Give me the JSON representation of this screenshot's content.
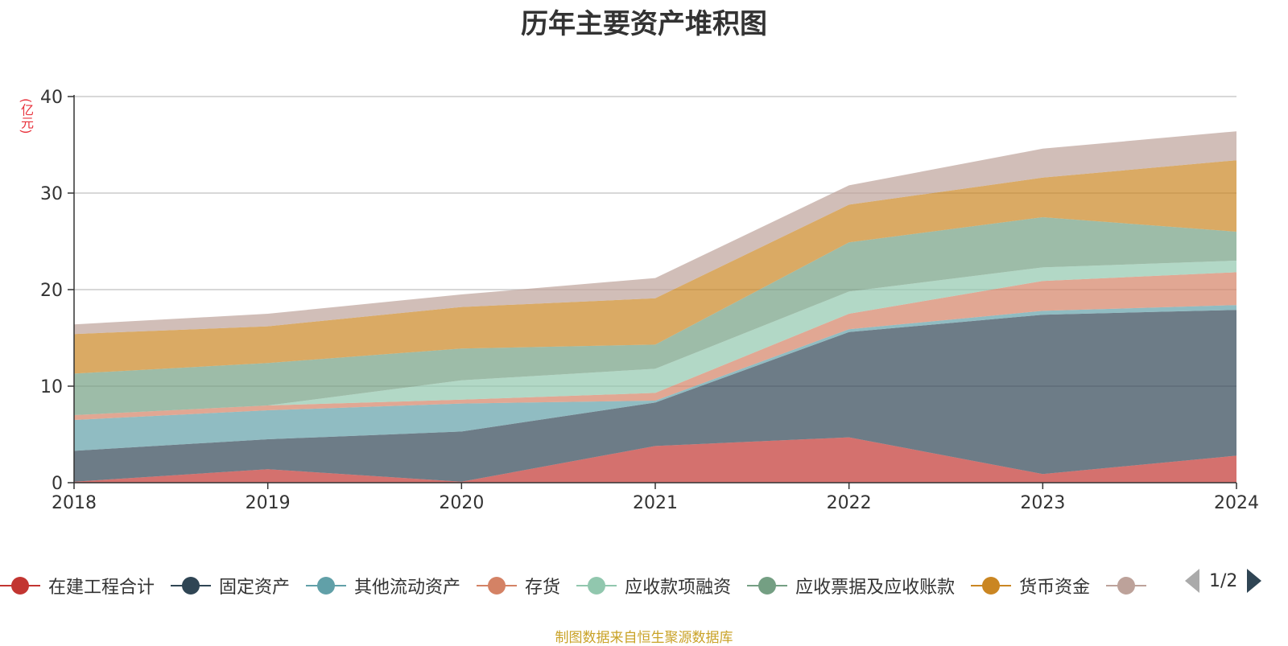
{
  "chart_data": {
    "type": "area",
    "stacked": true,
    "title": "历年主要资产堆积图",
    "unit_label": "(亿元)",
    "x": [
      "2018",
      "2019",
      "2020",
      "2021",
      "2022",
      "2023",
      "2024"
    ],
    "ylim": [
      0,
      40
    ],
    "yticks": [
      0,
      10,
      20,
      30,
      40
    ],
    "grid": true,
    "legend_position": "bottom",
    "legend_page": "1/2",
    "series": [
      {
        "name": "在建工程合计",
        "color": "#c23531",
        "values": [
          0.1,
          1.4,
          0.1,
          3.8,
          4.7,
          0.9,
          2.8
        ]
      },
      {
        "name": "固定资产",
        "color": "#2f4554",
        "values": [
          3.2,
          3.1,
          5.2,
          4.5,
          10.9,
          16.5,
          15.1
        ]
      },
      {
        "name": "其他流动资产",
        "color": "#61a0a8",
        "values": [
          3.2,
          3.0,
          2.9,
          0.2,
          0.3,
          0.4,
          0.5
        ]
      },
      {
        "name": "存货",
        "color": "#d48265",
        "values": [
          0.5,
          0.5,
          0.4,
          0.8,
          1.6,
          3.1,
          3.4
        ]
      },
      {
        "name": "应收款项融资",
        "color": "#91c7ae",
        "values": [
          0.0,
          0.0,
          2.0,
          2.5,
          2.3,
          1.4,
          1.2
        ]
      },
      {
        "name": "应收票据及应收账款",
        "color": "#749f83",
        "values": [
          4.3,
          4.4,
          3.3,
          2.5,
          5.1,
          5.2,
          3.0
        ]
      },
      {
        "name": "货币资金",
        "color": "#ca8622",
        "values": [
          4.1,
          3.8,
          4.3,
          4.8,
          3.9,
          4.1,
          7.4
        ]
      },
      {
        "name": "",
        "color": "#bda29a",
        "values": [
          1.0,
          1.3,
          1.3,
          2.1,
          2.0,
          3.0,
          3.0
        ]
      }
    ]
  },
  "source_note": "制图数据来自恒生聚源数据库"
}
